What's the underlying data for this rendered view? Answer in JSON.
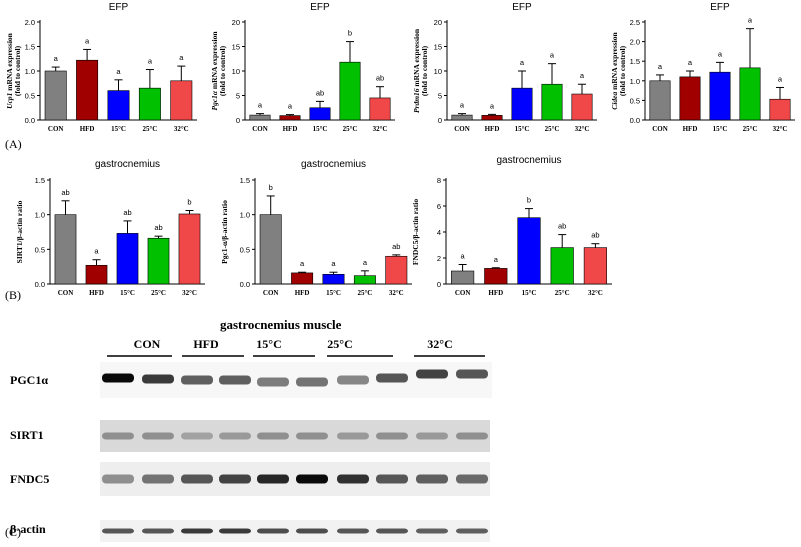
{
  "panel_labels": {
    "a": "(A)",
    "b": "(B)",
    "c": "(C)"
  },
  "colors": [
    "#808080",
    "#a00000",
    "#0000ff",
    "#00c000",
    "#f04848"
  ],
  "chart_data": [
    {
      "type": "bar",
      "title": "EFP",
      "ylabel": "Ucp1 mRNA expression",
      "ylabel_italic_word": "Ucp1",
      "ylabel2": "(fold to control)",
      "categories": [
        "CON",
        "HFD",
        "15°C",
        "25°C",
        "32°C"
      ],
      "values": [
        1.0,
        1.22,
        0.6,
        0.65,
        0.8
      ],
      "errors": [
        0.08,
        0.22,
        0.22,
        0.38,
        0.3
      ],
      "letters": [
        "a",
        "a",
        "a",
        "a",
        "a"
      ],
      "ylim": [
        0,
        2.0
      ],
      "yticks": [
        "0.0",
        "0.5",
        "1.0",
        "1.5",
        "2.0"
      ],
      "tickvals": [
        0,
        0.5,
        1.0,
        1.5,
        2.0
      ]
    },
    {
      "type": "bar",
      "title": "EFP",
      "ylabel": "Pgc1α mRNA expression",
      "ylabel_italic_word": "Pgc1α",
      "ylabel2": "(fold to control)",
      "categories": [
        "CON",
        "HFD",
        "15°C",
        "25°C",
        "32°C"
      ],
      "values": [
        1.0,
        0.9,
        2.5,
        11.8,
        4.5
      ],
      "errors": [
        0.3,
        0.2,
        1.3,
        4.2,
        2.3
      ],
      "letters": [
        "a",
        "a",
        "ab",
        "b",
        "ab"
      ],
      "ylim": [
        0,
        20
      ],
      "yticks": [
        "0",
        "5",
        "10",
        "15",
        "20"
      ],
      "tickvals": [
        0,
        5,
        10,
        15,
        20
      ]
    },
    {
      "type": "bar",
      "title": "EFP",
      "ylabel": "Prdm16 mRNA expression",
      "ylabel_italic_word": "Prdm16",
      "ylabel2": "(fold to control)",
      "categories": [
        "CON",
        "HFD",
        "15°C",
        "25°C",
        "32°C"
      ],
      "values": [
        1.0,
        0.95,
        6.5,
        7.3,
        5.3
      ],
      "errors": [
        0.3,
        0.2,
        3.5,
        4.2,
        2.0
      ],
      "letters": [
        "a",
        "a",
        "a",
        "a",
        "a"
      ],
      "ylim": [
        0,
        20
      ],
      "yticks": [
        "0",
        "5",
        "10",
        "15",
        "20"
      ],
      "tickvals": [
        0,
        5,
        10,
        15,
        20
      ]
    },
    {
      "type": "bar",
      "title": "EFP",
      "ylabel": "Cidea mRNA expression",
      "ylabel_italic_word": "Cidea",
      "ylabel2": "(fold to control)",
      "categories": [
        "CON",
        "HFD",
        "15°C",
        "25°C",
        "32°C"
      ],
      "values": [
        1.0,
        1.1,
        1.22,
        1.33,
        0.53
      ],
      "errors": [
        0.15,
        0.15,
        0.25,
        1.0,
        0.3
      ],
      "letters": [
        "a",
        "a",
        "a",
        "a",
        "a"
      ],
      "ylim": [
        0,
        2.5
      ],
      "yticks": [
        "0.0",
        "0.5",
        "1.0",
        "1.5",
        "2.0",
        "2.5"
      ],
      "tickvals": [
        0,
        0.5,
        1.0,
        1.5,
        2.0,
        2.5
      ]
    },
    {
      "type": "bar",
      "title": "gastrocnemius",
      "ylabel": "SIRT1/β-actin ratio",
      "ylabel_italic_word": "",
      "ylabel2": "",
      "categories": [
        "CON",
        "HFD",
        "15°C",
        "25°C",
        "32°C"
      ],
      "values": [
        1.0,
        0.27,
        0.73,
        0.66,
        1.01
      ],
      "errors": [
        0.2,
        0.08,
        0.18,
        0.03,
        0.05
      ],
      "letters": [
        "ab",
        "a",
        "ab",
        "ab",
        "b"
      ],
      "ylim": [
        0,
        1.5
      ],
      "yticks": [
        "0.0",
        "0.5",
        "1.0",
        "1.5"
      ],
      "tickvals": [
        0,
        0.5,
        1.0,
        1.5
      ]
    },
    {
      "type": "bar",
      "title": "gastrocnemius",
      "ylabel": "Pgc1-α/β-actin ratio",
      "ylabel_italic_word": "",
      "ylabel2": "",
      "categories": [
        "CON",
        "HFD",
        "15°C",
        "25°C",
        "32°C"
      ],
      "values": [
        1.0,
        0.16,
        0.14,
        0.12,
        0.4
      ],
      "errors": [
        0.27,
        0.01,
        0.03,
        0.07,
        0.02
      ],
      "letters": [
        "b",
        "a",
        "a",
        "a",
        "ab"
      ],
      "ylim": [
        0,
        1.5
      ],
      "yticks": [
        "0.0",
        "0.5",
        "1.0",
        "1.5"
      ],
      "tickvals": [
        0,
        0.5,
        1.0,
        1.5
      ]
    },
    {
      "type": "bar",
      "title": "gastrocnemius",
      "ylabel": "FNDC5/β-actin ratio",
      "ylabel_italic_word": "",
      "ylabel2": "",
      "categories": [
        "CON",
        "HFD",
        "15°C",
        "25°C",
        "32°C"
      ],
      "values": [
        1.0,
        1.2,
        5.1,
        2.8,
        2.8
      ],
      "errors": [
        0.5,
        0.05,
        0.7,
        1.0,
        0.3
      ],
      "letters": [
        "a",
        "a",
        "b",
        "ab",
        "ab"
      ],
      "ylim": [
        0,
        8
      ],
      "yticks": [
        "0",
        "2",
        "4",
        "6",
        "8"
      ],
      "tickvals": [
        0,
        2,
        4,
        6,
        8
      ]
    }
  ],
  "blot": {
    "title": "gastrocnemius muscle",
    "groups": [
      "CON",
      "HFD",
      "15°C",
      "25°C",
      "32°C"
    ],
    "proteins": [
      "PGC1α",
      "SIRT1",
      "FNDC5",
      "β-actin"
    ]
  }
}
